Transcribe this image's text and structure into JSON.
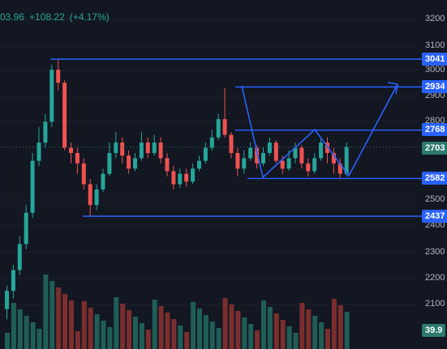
{
  "header": {
    "open_partial": "03.96",
    "change": "+108.22",
    "change_pct": "(+4.17%)"
  },
  "colors": {
    "background": "#131722",
    "up": "#26a69a",
    "down": "#ef5350",
    "drawing": "#2962ff",
    "current_price": "#2d7a6e",
    "grid": "#1e222d"
  },
  "price_axis": {
    "ticks": [
      "3200",
      "3100",
      "3000",
      "2900",
      "2800",
      "2500",
      "2400",
      "2300",
      "2200",
      "2100"
    ]
  },
  "levels": [
    {
      "label": "3041",
      "value": 3041
    },
    {
      "label": "2934",
      "value": 2934
    },
    {
      "label": "2768",
      "value": 2768
    },
    {
      "label": "2582",
      "value": 2582
    },
    {
      "label": "2437",
      "value": 2437
    }
  ],
  "current_price": {
    "label": "2703",
    "value": 2703
  },
  "volume_label": "39.9"
}
